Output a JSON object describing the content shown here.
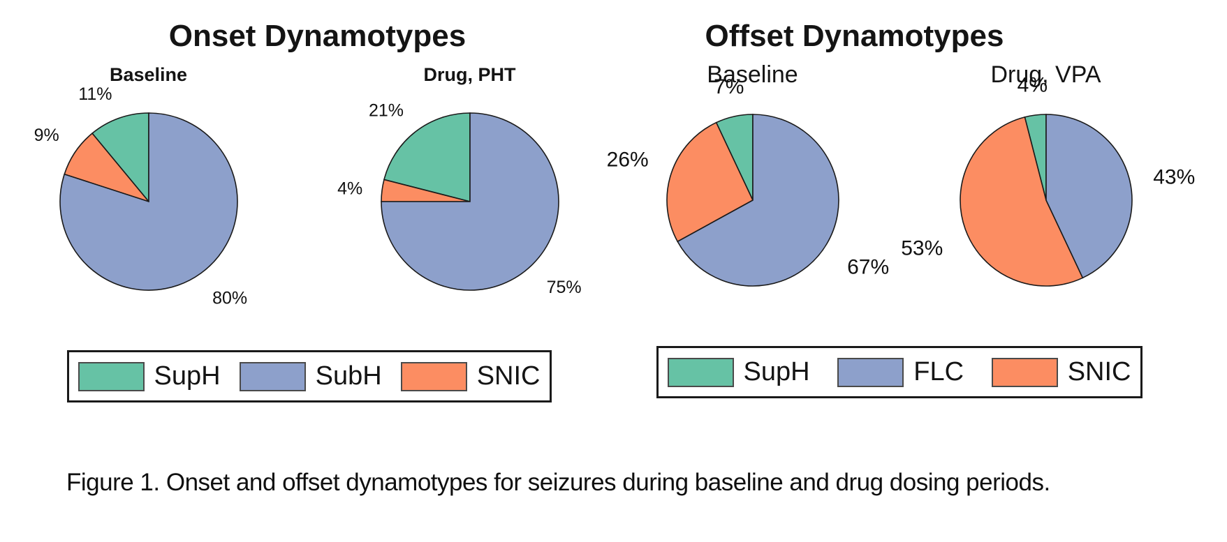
{
  "onset": {
    "title": "Onset Dynamotypes",
    "legend": [
      {
        "label": "SupH",
        "color": "#66C2A5"
      },
      {
        "label": "SubH",
        "color": "#8DA0CB"
      },
      {
        "label": "SNIC",
        "color": "#FC8D62"
      }
    ]
  },
  "offset": {
    "title": "Offset Dynamotypes",
    "legend": [
      {
        "label": "SupH",
        "color": "#66C2A5"
      },
      {
        "label": "FLC",
        "color": "#8DA0CB"
      },
      {
        "label": "SNIC",
        "color": "#FC8D62"
      }
    ]
  },
  "caption": "Figure 1. Onset and offset dynamotypes for seizures during baseline and drug dosing periods.",
  "colors": {
    "slice_outline": "#1a1a1a",
    "suph_green": "#66C2A5",
    "subh_flc_blue": "#8DA0CB",
    "snic_orange": "#FC8D62"
  },
  "chart_data": [
    {
      "type": "pie",
      "panel": "Onset Dynamotypes",
      "title": "Baseline",
      "start_angle_deg": 90,
      "direction": "counterclockwise",
      "value_suffix": "%",
      "slices": [
        {
          "label": "SupH",
          "value": 11,
          "color": "#66C2A5"
        },
        {
          "label": "SNIC",
          "value": 9,
          "color": "#FC8D62"
        },
        {
          "label": "SubH",
          "value": 80,
          "color": "#8DA0CB"
        }
      ]
    },
    {
      "type": "pie",
      "panel": "Onset Dynamotypes",
      "title": "Drug, PHT",
      "start_angle_deg": 90,
      "direction": "counterclockwise",
      "value_suffix": "%",
      "slices": [
        {
          "label": "SupH",
          "value": 21,
          "color": "#66C2A5"
        },
        {
          "label": "SNIC",
          "value": 4,
          "color": "#FC8D62"
        },
        {
          "label": "SubH",
          "value": 75,
          "color": "#8DA0CB"
        }
      ]
    },
    {
      "type": "pie",
      "panel": "Offset Dynamotypes",
      "title": "Baseline",
      "start_angle_deg": 90,
      "direction": "counterclockwise",
      "value_suffix": "%",
      "slices": [
        {
          "label": "SupH",
          "value": 7,
          "color": "#66C2A5"
        },
        {
          "label": "SNIC",
          "value": 26,
          "color": "#FC8D62"
        },
        {
          "label": "FLC",
          "value": 67,
          "color": "#8DA0CB"
        }
      ]
    },
    {
      "type": "pie",
      "panel": "Offset Dynamotypes",
      "title": "Drug, VPA",
      "start_angle_deg": 90,
      "direction": "counterclockwise",
      "value_suffix": "%",
      "slices": [
        {
          "label": "SupH",
          "value": 4,
          "color": "#66C2A5"
        },
        {
          "label": "SNIC",
          "value": 53,
          "color": "#FC8D62"
        },
        {
          "label": "FLC",
          "value": 43,
          "color": "#8DA0CB"
        }
      ]
    }
  ]
}
